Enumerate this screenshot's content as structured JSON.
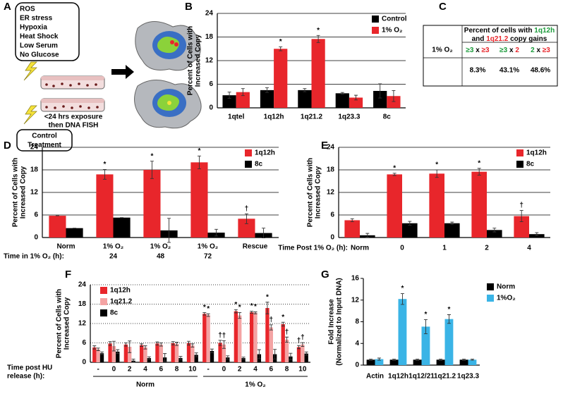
{
  "panel_labels": [
    "A",
    "B",
    "C",
    "D",
    "E",
    "F",
    "G"
  ],
  "diagram": {
    "stresses": [
      "ROS",
      "ER stress",
      "Hypoxia",
      "Heat Shock",
      "Low Serum",
      "No Glucose"
    ],
    "exposure": [
      "<24 hrs exposure",
      "then DNA FISH"
    ],
    "control": [
      "Control",
      "Treatment"
    ]
  },
  "table": {
    "title": [
      "Percent of cells with",
      "1q12h",
      "and",
      "1q21.2",
      "copy gains"
    ],
    "headers": [
      [
        "≥3",
        "x",
        "≥3"
      ],
      [
        "≥3",
        "x",
        "2"
      ],
      [
        "2",
        "x",
        "≥3"
      ]
    ],
    "row_label": "1% O₂",
    "values": [
      "8.3%",
      "43.1%",
      "48.6%"
    ]
  },
  "chart_data": [
    {
      "type": "bar",
      "ylabel": [
        "Percent of Cells with",
        "Increased Copy"
      ],
      "categories": [
        "1qtel",
        "1q12h",
        "1q21.2",
        "1q23.3",
        "8c"
      ],
      "series": [
        {
          "name": "Control",
          "color": "#000000",
          "values": [
            3.2,
            4.5,
            4.5,
            3.7,
            4.3
          ],
          "errors": [
            0.8,
            0.6,
            0.4,
            0.2,
            1.8
          ],
          "markers": [
            null,
            null,
            null,
            null,
            null
          ]
        },
        {
          "name": "1% O₂",
          "color": "#e8262b",
          "values": [
            4.0,
            15.0,
            17.5,
            2.6,
            3.0
          ],
          "errors": [
            0.9,
            0.5,
            0.9,
            0.6,
            1.4
          ],
          "markers": [
            null,
            "*",
            "*",
            null,
            null
          ]
        }
      ],
      "ylim": [
        0,
        24
      ],
      "yticks": [
        0,
        6,
        12,
        18,
        24
      ],
      "grid": true,
      "legend": "upper right"
    },
    {
      "type": "bar",
      "ylabel": [
        "Percent of Cells with",
        "Increased Copy"
      ],
      "xlabel": [
        "Time in 1% O₂ (h):"
      ],
      "categories": [
        "Norm",
        "1% O₂",
        "1% O₂",
        "1% O₂",
        "Rescue"
      ],
      "category_sublabels": [
        null,
        "24",
        "48",
        "72",
        null
      ],
      "series": [
        {
          "name": "1q12h",
          "color": "#e8262b",
          "values": [
            5.8,
            16.8,
            18.0,
            20.0,
            5.0
          ],
          "errors": [
            0,
            1.3,
            2.3,
            1.7,
            1.3
          ],
          "markers": [
            null,
            "*",
            "*",
            "*",
            "†"
          ]
        },
        {
          "name": "8c",
          "color": "#000000",
          "values": [
            2.5,
            5.3,
            1.9,
            1.3,
            1.2
          ],
          "errors": [
            0,
            0,
            3.2,
            0.9,
            1.3
          ],
          "markers": [
            null,
            null,
            null,
            null,
            null
          ]
        }
      ],
      "ylim": [
        0,
        24
      ],
      "yticks": [
        0,
        6,
        12,
        18,
        24
      ],
      "grid": true,
      "legend": "upper right"
    },
    {
      "type": "bar",
      "ylabel": [
        "Percent of Cells with",
        "Increased Copy"
      ],
      "xlabel": [
        "Time Post 1% O₂ (h):"
      ],
      "categories": [
        "Norm",
        "0",
        "1",
        "2",
        "4"
      ],
      "series": [
        {
          "name": "1q12h",
          "color": "#e8262b",
          "values": [
            4.6,
            16.8,
            17.0,
            17.5,
            5.7
          ],
          "errors": [
            0.4,
            0.3,
            1.0,
            0.9,
            1.5
          ],
          "markers": [
            null,
            "*",
            "*",
            "*",
            "†"
          ]
        },
        {
          "name": "8c",
          "color": "#000000",
          "values": [
            0.6,
            3.8,
            3.8,
            2.0,
            0.9
          ],
          "errors": [
            0.5,
            0.5,
            0.3,
            0.5,
            0.4
          ],
          "markers": [
            null,
            null,
            null,
            null,
            null
          ]
        }
      ],
      "ylim": [
        0,
        24
      ],
      "yticks": [
        0,
        6,
        12,
        18,
        24
      ],
      "grid": true,
      "legend": "upper right"
    },
    {
      "type": "bar",
      "ylabel": [
        "Percent of Cells with",
        "Increased Copy"
      ],
      "xlabel": [
        "Time post HU",
        "release (h):"
      ],
      "categories": [
        "-",
        "0",
        "2",
        "4",
        "6",
        "8",
        "10",
        "-",
        "0",
        "2",
        "4",
        "6",
        "8",
        "10"
      ],
      "group_labels": [
        "Norm",
        "1% O₂"
      ],
      "series": [
        {
          "name": "1q12h",
          "color": "#e8262b",
          "values": [
            4.6,
            5.8,
            5.5,
            5.3,
            5.8,
            5.9,
            5.9,
            15.0,
            6.0,
            15.8,
            15.5,
            16.8,
            11.8,
            4.7
          ],
          "errors": [
            0.5,
            0.6,
            0.5,
            0.4,
            0.5,
            0.5,
            0.6,
            0.4,
            0.8,
            0.5,
            0.3,
            1.8,
            0.6,
            0.5
          ],
          "markers": [
            null,
            null,
            null,
            null,
            null,
            null,
            null,
            "*",
            "†",
            "*",
            "*",
            "*",
            "*",
            "†"
          ]
        },
        {
          "name": "1q21.2",
          "color": "#f4a3a3",
          "values": [
            4.0,
            5.0,
            4.8,
            4.6,
            5.5,
            5.7,
            5.2,
            14.6,
            5.5,
            14.5,
            15.3,
            10.8,
            7.0,
            5.5
          ],
          "errors": [
            0.4,
            1.5,
            1.8,
            0.5,
            0.5,
            0.5,
            0.5,
            0.4,
            1.2,
            0.9,
            0.3,
            0.8,
            0.8,
            0.6
          ],
          "markers": [
            null,
            null,
            null,
            null,
            null,
            null,
            null,
            "*",
            "†",
            "*",
            "*",
            "†",
            "†",
            "†"
          ]
        },
        {
          "name": "8c",
          "color": "#000000",
          "values": [
            2.8,
            3.3,
            0.5,
            1.3,
            1.5,
            1.3,
            2.3,
            3.5,
            1.5,
            1.3,
            2.5,
            2.5,
            1.8,
            2.7
          ],
          "errors": [
            0.4,
            0.6,
            0.5,
            0.4,
            1.2,
            0.5,
            0.6,
            0.6,
            0.5,
            0.3,
            1.4,
            1.5,
            1.0,
            0.5
          ],
          "markers": [
            null,
            null,
            null,
            null,
            null,
            null,
            null,
            null,
            null,
            null,
            null,
            null,
            null,
            null
          ]
        }
      ],
      "ylim": [
        0,
        24
      ],
      "yticks": [
        0,
        6,
        12,
        18,
        24
      ],
      "grid": true,
      "grid_style": "dotted",
      "legend": "upper left"
    },
    {
      "type": "bar",
      "ylabel": [
        "Fold Increase",
        "(Normalized to Input DNA)"
      ],
      "categories": [
        "Actin",
        "1q12h",
        "1q12/21",
        "1q21.2",
        "1q23.3"
      ],
      "series": [
        {
          "name": "Norm",
          "color": "#000000",
          "values": [
            1.0,
            1.0,
            1.0,
            1.0,
            1.0
          ],
          "errors": [
            0.1,
            0.1,
            0.1,
            0.1,
            0.1
          ],
          "markers": [
            null,
            null,
            null,
            null,
            null
          ]
        },
        {
          "name": "1%O₂",
          "color": "#3ab4e6",
          "values": [
            1.1,
            12.2,
            7.1,
            8.5,
            1.0
          ],
          "errors": [
            0.2,
            1.0,
            1.3,
            0.8,
            0.1
          ],
          "markers": [
            null,
            "*",
            "*",
            "*",
            null
          ]
        }
      ],
      "ylim": [
        0,
        16
      ],
      "yticks": [
        0,
        4,
        8,
        12,
        16
      ],
      "grid": false,
      "legend": "right"
    }
  ]
}
